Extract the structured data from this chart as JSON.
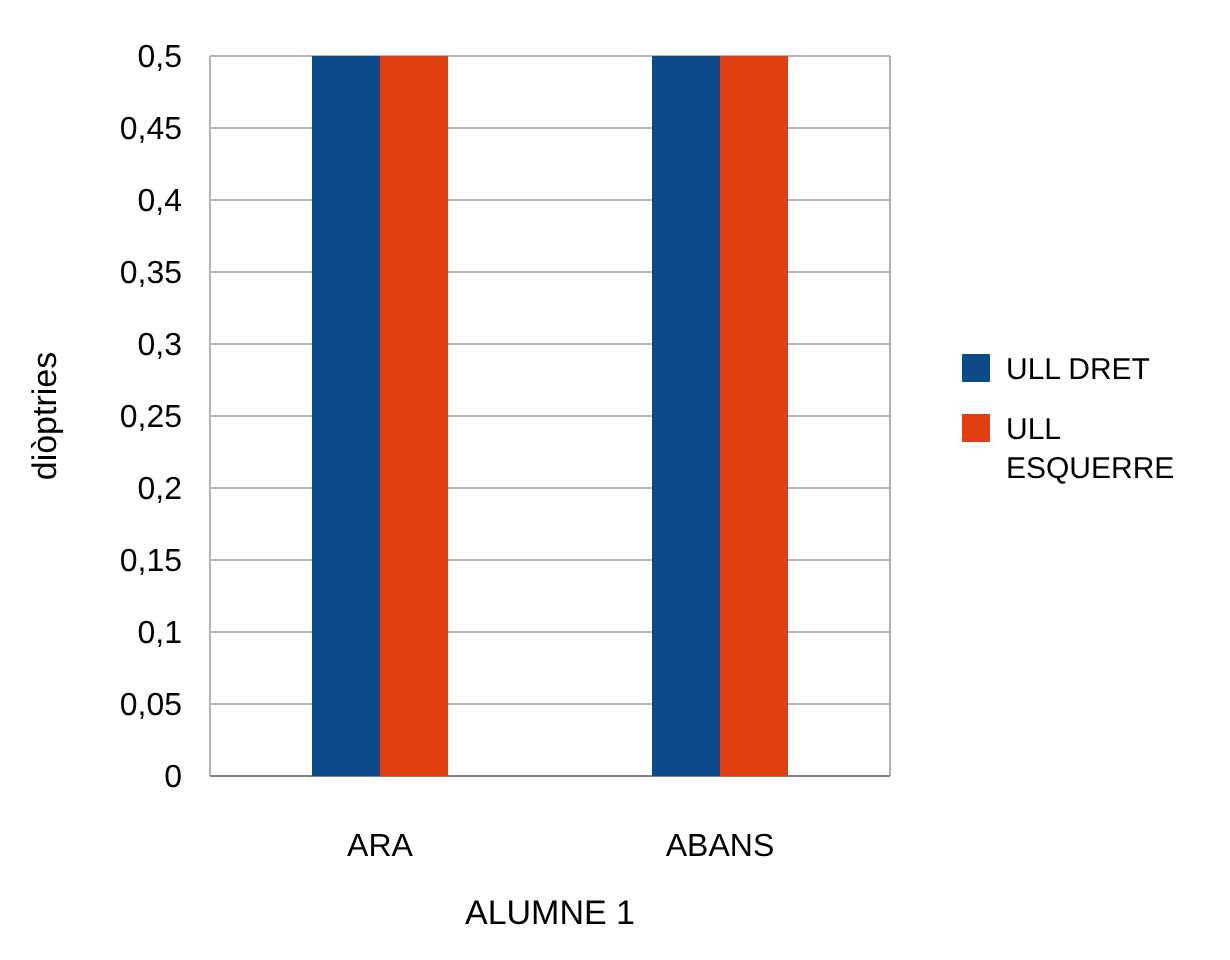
{
  "chart_data": {
    "type": "bar",
    "xlabel": "ALUMNE 1",
    "ylabel": "diòptries",
    "categories": [
      "ARA",
      "ABANS"
    ],
    "series": [
      {
        "name": "ULL DRET",
        "color": "#0b4a8b",
        "values": [
          0.5,
          0.5
        ]
      },
      {
        "name": "ULL ESQUERRE",
        "color": "#e0400f",
        "values": [
          0.5,
          0.5
        ]
      }
    ],
    "ylim": [
      0,
      0.5
    ],
    "yticks": [
      0,
      {
        "value": 0.05,
        "label": "0,05"
      },
      {
        "value": 0.1,
        "label": "0,1"
      },
      {
        "value": 0.15,
        "label": "0,15"
      },
      {
        "value": 0.2,
        "label": "0,2"
      },
      {
        "value": 0.25,
        "label": "0,25"
      },
      {
        "value": 0.3,
        "label": "0,3"
      },
      {
        "value": 0.35,
        "label": "0,35"
      },
      {
        "value": 0.4,
        "label": "0,4"
      },
      {
        "value": 0.45,
        "label": "0,45"
      },
      {
        "value": 0.5,
        "label": "0,5"
      }
    ],
    "grid": true,
    "legend": "right"
  }
}
